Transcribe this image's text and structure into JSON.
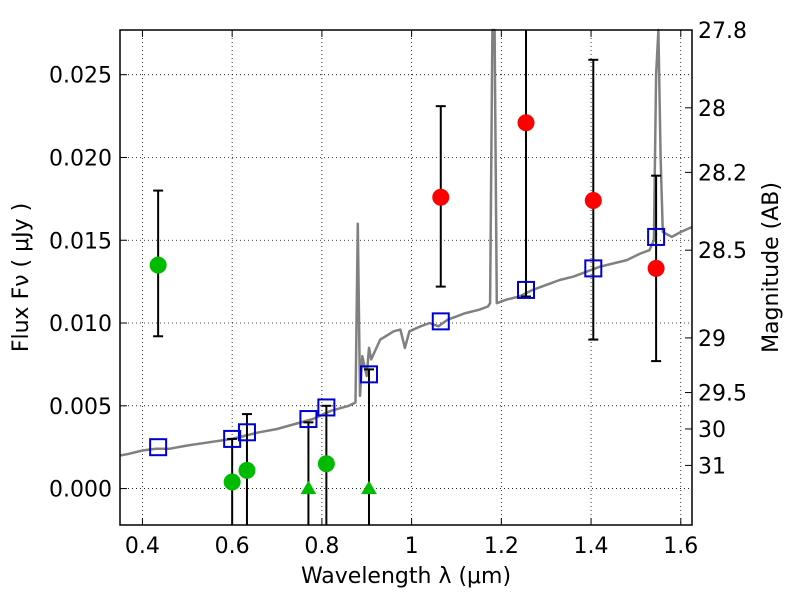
{
  "chart_data": {
    "type": "scatter",
    "xlabel": "Wavelength  λ (μm)",
    "ylabel": "Flux  Fν  ( μJy )",
    "ylabel_right": "Magnitude (AB)",
    "xlim": [
      0.35,
      1.625
    ],
    "ylim": [
      -0.0022,
      0.0277
    ],
    "grid": true,
    "xticks": [
      {
        "value": 0.4,
        "label": "0.4"
      },
      {
        "value": 0.6,
        "label": "0.6"
      },
      {
        "value": 0.8,
        "label": "0.8"
      },
      {
        "value": 1.0,
        "label": "1"
      },
      {
        "value": 1.2,
        "label": "1.2"
      },
      {
        "value": 1.4,
        "label": "1.4"
      },
      {
        "value": 1.6,
        "label": "1.6"
      }
    ],
    "yticks": [
      {
        "value": 0.0,
        "label": "0.000"
      },
      {
        "value": 0.005,
        "label": "0.005"
      },
      {
        "value": 0.01,
        "label": "0.010"
      },
      {
        "value": 0.015,
        "label": "0.015"
      },
      {
        "value": 0.02,
        "label": "0.020"
      },
      {
        "value": 0.025,
        "label": "0.025"
      }
    ],
    "right_ticks": [
      {
        "flux": 0.0277,
        "label": "27.8"
      },
      {
        "flux": 0.023,
        "label": "28"
      },
      {
        "flux": 0.0191,
        "label": "28.2"
      },
      {
        "flux": 0.0144,
        "label": "28.5"
      },
      {
        "flux": 0.0091,
        "label": "29"
      },
      {
        "flux": 0.0058,
        "label": "29.5"
      },
      {
        "flux": 0.0036,
        "label": "30"
      },
      {
        "flux": 0.0014,
        "label": "31"
      }
    ],
    "colors": {
      "sed": "#808080",
      "red_points": "#ff0000",
      "green_points": "#00bb00",
      "model_boxes": "#0000cc",
      "error_bars": "#000000"
    },
    "sed_curve": [
      [
        0.35,
        0.002
      ],
      [
        0.37,
        0.0021
      ],
      [
        0.4,
        0.0023
      ],
      [
        0.43,
        0.0024
      ],
      [
        0.46,
        0.0024
      ],
      [
        0.5,
        0.0026
      ],
      [
        0.55,
        0.0028
      ],
      [
        0.6,
        0.003
      ],
      [
        0.63,
        0.0032
      ],
      [
        0.66,
        0.0034
      ],
      [
        0.7,
        0.0036
      ],
      [
        0.74,
        0.0039
      ],
      [
        0.78,
        0.0042
      ],
      [
        0.82,
        0.0047
      ],
      [
        0.86,
        0.005
      ],
      [
        0.875,
        0.0052
      ],
      [
        0.88,
        0.016
      ],
      [
        0.885,
        0.0056
      ],
      [
        0.89,
        0.008
      ],
      [
        0.9,
        0.0068
      ],
      [
        0.905,
        0.0085
      ],
      [
        0.91,
        0.0078
      ],
      [
        0.93,
        0.009
      ],
      [
        0.96,
        0.0095
      ],
      [
        0.975,
        0.0096
      ],
      [
        0.985,
        0.0085
      ],
      [
        0.995,
        0.0095
      ],
      [
        1.02,
        0.0098
      ],
      [
        1.04,
        0.01
      ],
      [
        1.06,
        0.0098
      ],
      [
        1.08,
        0.0102
      ],
      [
        1.1,
        0.0104
      ],
      [
        1.12,
        0.0106
      ],
      [
        1.15,
        0.0108
      ],
      [
        1.17,
        0.011
      ],
      [
        1.175,
        0.0112
      ],
      [
        1.18,
        0.0277
      ],
      [
        1.185,
        0.0277
      ],
      [
        1.19,
        0.0112
      ],
      [
        1.21,
        0.0114
      ],
      [
        1.24,
        0.0116
      ],
      [
        1.27,
        0.012
      ],
      [
        1.3,
        0.0123
      ],
      [
        1.33,
        0.0126
      ],
      [
        1.36,
        0.0128
      ],
      [
        1.39,
        0.0131
      ],
      [
        1.42,
        0.0134
      ],
      [
        1.45,
        0.0136
      ],
      [
        1.48,
        0.0138
      ],
      [
        1.51,
        0.0142
      ],
      [
        1.53,
        0.0144
      ],
      [
        1.54,
        0.015
      ],
      [
        1.545,
        0.025
      ],
      [
        1.55,
        0.0277
      ],
      [
        1.555,
        0.02
      ],
      [
        1.56,
        0.0155
      ],
      [
        1.58,
        0.0152
      ],
      [
        1.6,
        0.0155
      ],
      [
        1.625,
        0.0158
      ]
    ],
    "model_boxes": [
      {
        "x": 0.435,
        "y": 0.0025
      },
      {
        "x": 0.6,
        "y": 0.003
      },
      {
        "x": 0.633,
        "y": 0.0034
      },
      {
        "x": 0.77,
        "y": 0.0042
      },
      {
        "x": 0.81,
        "y": 0.0049
      },
      {
        "x": 0.905,
        "y": 0.0069
      },
      {
        "x": 1.065,
        "y": 0.0101
      },
      {
        "x": 1.255,
        "y": 0.012
      },
      {
        "x": 1.405,
        "y": 0.0133
      },
      {
        "x": 1.545,
        "y": 0.0152
      }
    ],
    "observed_points": [
      {
        "x": 0.435,
        "y": 0.0135,
        "err_low": 0.0092,
        "err_high": 0.018,
        "color": "green",
        "marker": "circle"
      },
      {
        "x": 0.6,
        "y": 0.0004,
        "err_low": -0.0022,
        "err_high": 0.003,
        "color": "green",
        "marker": "circle"
      },
      {
        "x": 0.633,
        "y": 0.0011,
        "err_low": -0.0022,
        "err_high": 0.0045,
        "color": "green",
        "marker": "circle"
      },
      {
        "x": 0.77,
        "y": 0.0,
        "err_low": -0.0022,
        "err_high": 0.004,
        "color": "green",
        "marker": "triangle"
      },
      {
        "x": 0.81,
        "y": 0.0015,
        "err_low": -0.0022,
        "err_high": 0.005,
        "color": "green",
        "marker": "circle"
      },
      {
        "x": 0.905,
        "y": 0.0,
        "err_low": -0.0022,
        "err_high": 0.0072,
        "color": "green",
        "marker": "triangle"
      },
      {
        "x": 1.065,
        "y": 0.0176,
        "err_low": 0.0122,
        "err_high": 0.0231,
        "color": "red",
        "marker": "circle"
      },
      {
        "x": 1.255,
        "y": 0.0221,
        "err_low": 0.0116,
        "err_high": 0.0277,
        "color": "red",
        "marker": "circle"
      },
      {
        "x": 1.405,
        "y": 0.0174,
        "err_low": 0.009,
        "err_high": 0.0259,
        "color": "red",
        "marker": "circle"
      },
      {
        "x": 1.545,
        "y": 0.0133,
        "err_low": 0.0077,
        "err_high": 0.0189,
        "color": "red",
        "marker": "circle"
      }
    ]
  }
}
